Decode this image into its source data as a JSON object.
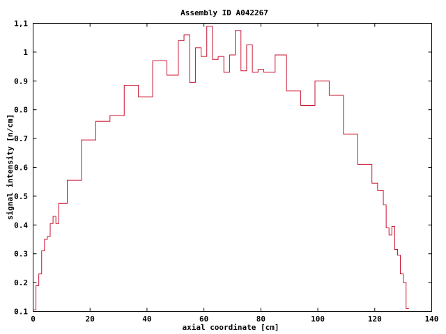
{
  "chart_data": {
    "type": "line",
    "step": true,
    "title": "Assembly ID A042267",
    "xlabel": "axial coordinate [cm]",
    "ylabel": "signal intensity [n/cm]",
    "xlim": [
      0,
      140
    ],
    "ylim": [
      0.1,
      1.1
    ],
    "xticks": [
      0,
      20,
      40,
      60,
      80,
      100,
      120,
      140
    ],
    "xtick_labels": [
      "0",
      "20",
      "40",
      "60",
      "80",
      "100",
      "120",
      "140"
    ],
    "yticks": [
      0.1,
      0.2,
      0.3,
      0.4,
      0.5,
      0.6,
      0.7,
      0.8,
      0.9,
      1.0,
      1.1
    ],
    "ytick_labels": [
      "0.1",
      "0.2",
      "0.3",
      "0.4",
      "0.5",
      "0.6",
      "0.7",
      "0.8",
      "0.9",
      "1",
      "1,1"
    ],
    "grid": false,
    "line_color": "#c8102e",
    "series": [
      {
        "edges": [
          0,
          1,
          2,
          3,
          4,
          5,
          6,
          7,
          8,
          9,
          12,
          17,
          22,
          27,
          32,
          37,
          42,
          47,
          51,
          53,
          55,
          57,
          59,
          61,
          63,
          65,
          67,
          69,
          71,
          73,
          75,
          77,
          79,
          81,
          85,
          89,
          94,
          99,
          104,
          109,
          114,
          119,
          121,
          123,
          124,
          125,
          126,
          127,
          128,
          129,
          130,
          131,
          132
        ],
        "values": [
          0.105,
          0.19,
          0.23,
          0.31,
          0.35,
          0.36,
          0.405,
          0.43,
          0.405,
          0.475,
          0.555,
          0.695,
          0.76,
          0.78,
          0.885,
          0.845,
          0.97,
          0.92,
          1.04,
          1.06,
          0.895,
          1.015,
          0.985,
          1.09,
          0.975,
          0.985,
          0.93,
          0.99,
          1.075,
          0.935,
          1.025,
          0.93,
          0.94,
          0.93,
          0.99,
          0.865,
          0.815,
          0.9,
          0.85,
          0.715,
          0.61,
          0.545,
          0.52,
          0.47,
          0.39,
          0.365,
          0.395,
          0.315,
          0.295,
          0.23,
          0.2,
          0.11
        ]
      }
    ]
  }
}
